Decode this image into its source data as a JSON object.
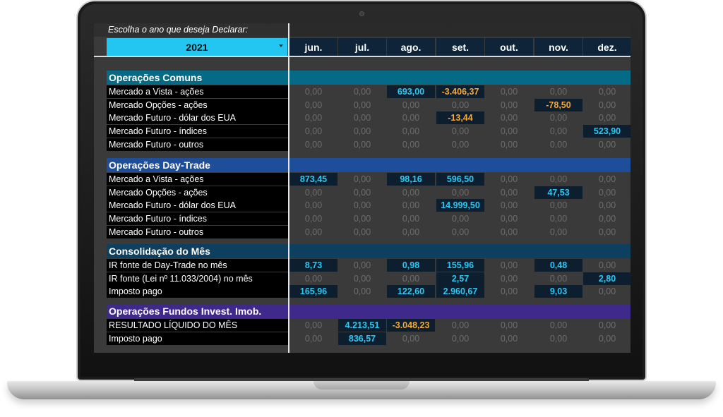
{
  "header": {
    "prompt": "Escolha o ano que deseja Declarar:",
    "year": "2021",
    "months": [
      "jun.",
      "jul.",
      "ago.",
      "set.",
      "out.",
      "nov.",
      "dez."
    ]
  },
  "colors": {
    "positive": "#2bc8f5",
    "negative": "#f6a935",
    "year_select": "#22c6f0"
  },
  "sections": [
    {
      "title": "Operações Comuns",
      "color": "#046a86",
      "rows": [
        {
          "label": "Mercado a Vista - ações",
          "values": [
            "0,00",
            "0,00",
            "693,00",
            "-3.406,37",
            "0,00",
            "0,00",
            "0,00"
          ]
        },
        {
          "label": "Mercado Opções - ações",
          "values": [
            "0,00",
            "0,00",
            "0,00",
            "0,00",
            "0,00",
            "-78,50",
            "0,00"
          ]
        },
        {
          "label": "Mercado Futuro - dólar dos EUA",
          "values": [
            "0,00",
            "0,00",
            "0,00",
            "-13,44",
            "0,00",
            "0,00",
            "0,00"
          ]
        },
        {
          "label": "Mercado Futuro - índices",
          "values": [
            "0,00",
            "0,00",
            "0,00",
            "0,00",
            "0,00",
            "0,00",
            "523,90"
          ]
        },
        {
          "label": "Mercado Futuro - outros",
          "values": [
            "0,00",
            "0,00",
            "0,00",
            "0,00",
            "0,00",
            "0,00",
            "0,00"
          ]
        }
      ]
    },
    {
      "title": "Operações Day-Trade",
      "color": "#1e4d9a",
      "rows": [
        {
          "label": "Mercado a Vista - ações",
          "values": [
            "873,45",
            "0,00",
            "98,16",
            "596,50",
            "0,00",
            "0,00",
            "0,00"
          ]
        },
        {
          "label": "Mercado Opções - ações",
          "values": [
            "0,00",
            "0,00",
            "0,00",
            "0,00",
            "0,00",
            "47,53",
            "0,00"
          ]
        },
        {
          "label": "Mercado Futuro - dólar dos EUA",
          "values": [
            "0,00",
            "0,00",
            "0,00",
            "14.999,50",
            "0,00",
            "0,00",
            "0,00"
          ]
        },
        {
          "label": "Mercado Futuro - índices",
          "values": [
            "0,00",
            "0,00",
            "0,00",
            "0,00",
            "0,00",
            "0,00",
            "0,00"
          ]
        },
        {
          "label": "Mercado Futuro - outros",
          "values": [
            "0,00",
            "0,00",
            "0,00",
            "0,00",
            "0,00",
            "0,00",
            "0,00"
          ]
        }
      ]
    },
    {
      "title": "Consolidação do Mês",
      "color": "#0f3f5f",
      "rows": [
        {
          "label": "IR fonte de Day-Trade no mês",
          "values": [
            "8,73",
            "0,00",
            "0,98",
            "155,96",
            "0,00",
            "0,48",
            "0,00"
          ]
        },
        {
          "label": "IR fonte (Lei nº 11.033/2004) no mês",
          "values": [
            "0,00",
            "0,00",
            "0,00",
            "2,57",
            "0,00",
            "0,00",
            "2,80"
          ]
        },
        {
          "label": "Imposto pago",
          "values": [
            "165,96",
            "0,00",
            "122,60",
            "2.960,67",
            "0,00",
            "9,03",
            "0,00"
          ]
        }
      ]
    },
    {
      "title": "Operações Fundos Invest. Imob.",
      "color": "#3f2a8c",
      "rows": [
        {
          "label": "RESULTADO LÍQUIDO DO MÊS",
          "values": [
            "0,00",
            "4.213,51",
            "-3.048,23",
            "0,00",
            "0,00",
            "0,00",
            "0,00"
          ]
        },
        {
          "label": "Imposto pago",
          "values": [
            "0,00",
            "836,57",
            "0,00",
            "0,00",
            "0,00",
            "0,00",
            "0,00"
          ]
        }
      ]
    }
  ]
}
